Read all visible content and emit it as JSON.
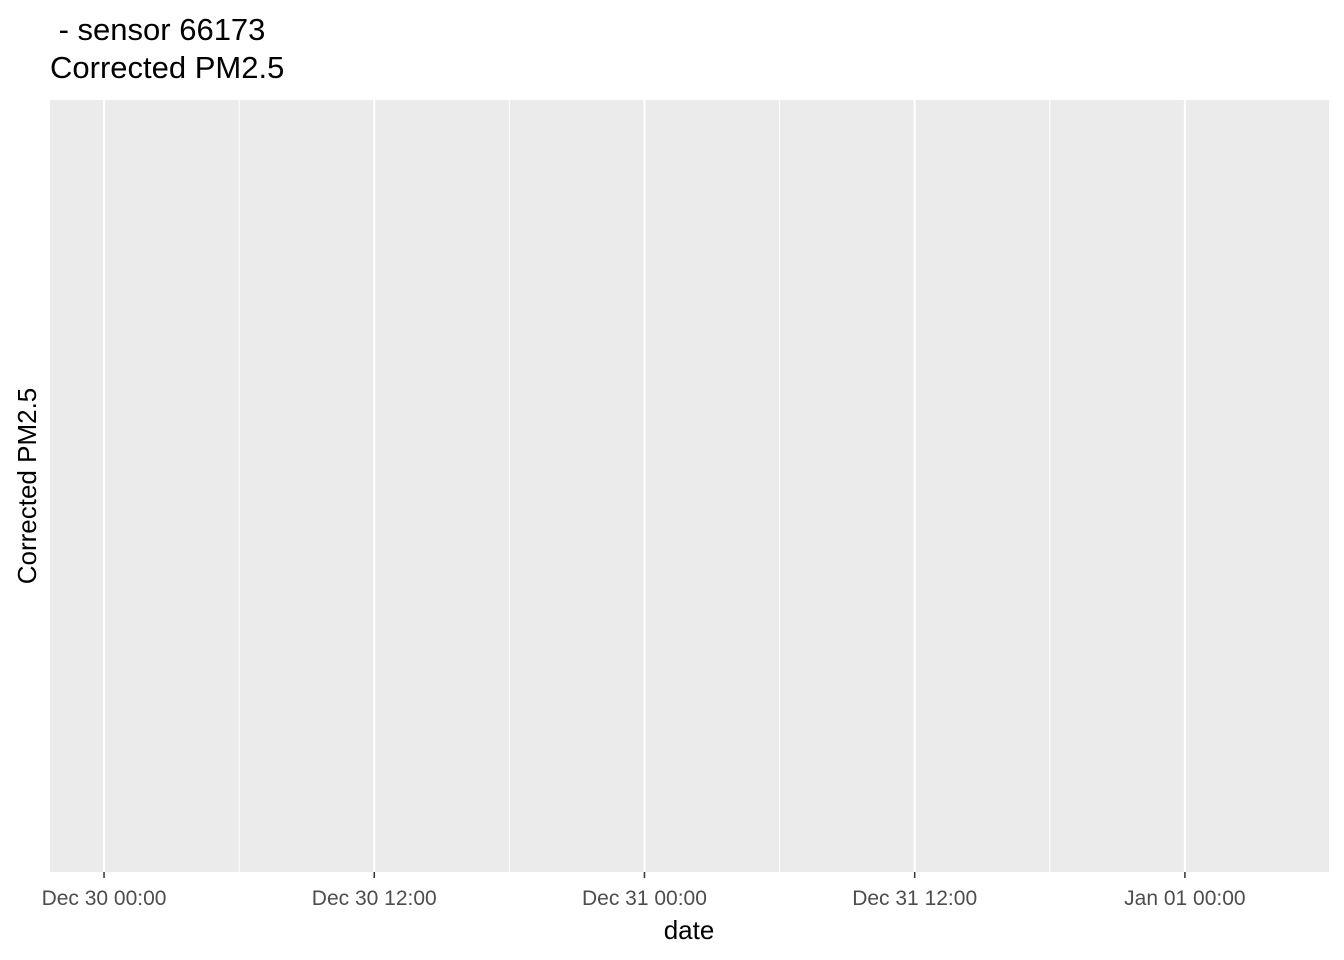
{
  "chart_data": {
    "type": "line",
    "title": " - sensor 66173",
    "subtitle": "Corrected PM2.5",
    "xlabel": "date",
    "ylabel": "Corrected PM2.5",
    "x_ticks": [
      "Dec 30 00:00",
      "Dec 30 12:00",
      "Dec 31 00:00",
      "Dec 31 12:00",
      "Jan 01 00:00"
    ],
    "x_major_hours": [
      0,
      12,
      24,
      36,
      48
    ],
    "x_minor_hours": [
      6,
      18,
      30,
      42
    ],
    "xlim_hours": [
      -2.4,
      54.4
    ],
    "series": [],
    "grid": true,
    "colors": {
      "panel_background": "#ebebeb",
      "grid": "#ffffff",
      "tick_label": "#4d4d4d",
      "tick_mark": "#333333",
      "text": "#000000"
    }
  }
}
